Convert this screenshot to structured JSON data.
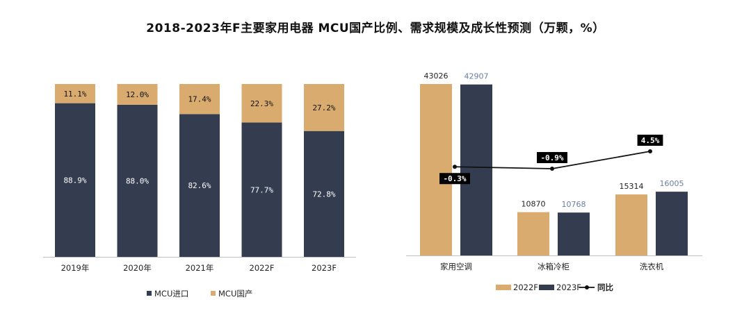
{
  "title": "2018-2023年F主要家用电器 MCU国产比例、需求规模及成长性预测（万颗，%）",
  "colors": {
    "import": "#333d4f",
    "domestic": "#d9ab6e",
    "line": "#111111",
    "value_2023": "#6a7fa0"
  },
  "chart_data": [
    {
      "type": "bar",
      "stacked": true,
      "categories": [
        "2019年",
        "2020年",
        "2021年",
        "2022F",
        "2023F"
      ],
      "series": [
        {
          "name": "MCU进口",
          "values": [
            88.9,
            88.0,
            82.6,
            77.7,
            72.8
          ],
          "labels": [
            "88.9%",
            "88.0%",
            "82.6%",
            "77.7%",
            "72.8%"
          ]
        },
        {
          "name": "MCU国产",
          "values": [
            11.1,
            12.0,
            17.4,
            22.3,
            27.2
          ],
          "labels": [
            "11.1%",
            "12.0%",
            "17.4%",
            "22.3%",
            "27.2%"
          ]
        }
      ],
      "ylim": [
        0,
        100
      ],
      "legend": "bottom"
    },
    {
      "type": "bar",
      "categories": [
        "家用空调",
        "冰箱冷柜",
        "洗衣机"
      ],
      "series": [
        {
          "name": "2022F",
          "values": [
            43026,
            10870,
            15314
          ],
          "labels": [
            "43026",
            "10870",
            "15314"
          ]
        },
        {
          "name": "2023F",
          "values": [
            42907,
            10768,
            16005
          ],
          "labels": [
            "42907",
            "10768",
            "16005"
          ]
        },
        {
          "name": "同比",
          "type": "line",
          "values": [
            -0.3,
            -0.9,
            4.5
          ],
          "labels": [
            "-0.3%",
            "-0.9%",
            "4.5%"
          ]
        }
      ],
      "ylim": [
        0,
        43026
      ],
      "legend": "bottom"
    }
  ]
}
